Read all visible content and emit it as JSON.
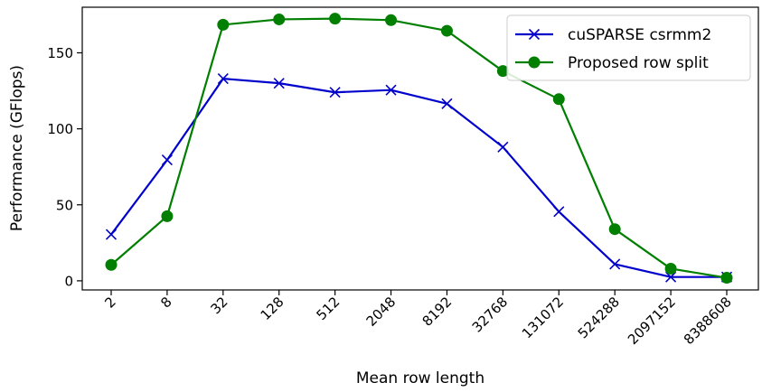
{
  "chart_data": {
    "type": "line",
    "title": "",
    "xlabel": "Mean row length",
    "ylabel": "Performance (GFlops)",
    "categories": [
      "2",
      "8",
      "32",
      "128",
      "512",
      "2048",
      "8192",
      "32768",
      "131072",
      "524288",
      "2097152",
      "8388608"
    ],
    "ylim": [
      -6,
      180
    ],
    "yticks": [
      0,
      50,
      100,
      150
    ],
    "grid": false,
    "legend_position": "top-right",
    "series": [
      {
        "name": "cuSPARSE csrmm2",
        "color": "#0000cc",
        "marker": "x",
        "values": [
          30.5,
          79.5,
          133,
          130,
          124,
          125.5,
          116.5,
          88,
          45.5,
          11,
          2.5,
          2.5
        ]
      },
      {
        "name": "Proposed row split",
        "color": "#007f00",
        "marker": "o",
        "values": [
          10.5,
          42.5,
          168.5,
          172,
          172.5,
          171.5,
          164.5,
          138,
          119.5,
          34,
          8,
          2
        ]
      }
    ]
  }
}
